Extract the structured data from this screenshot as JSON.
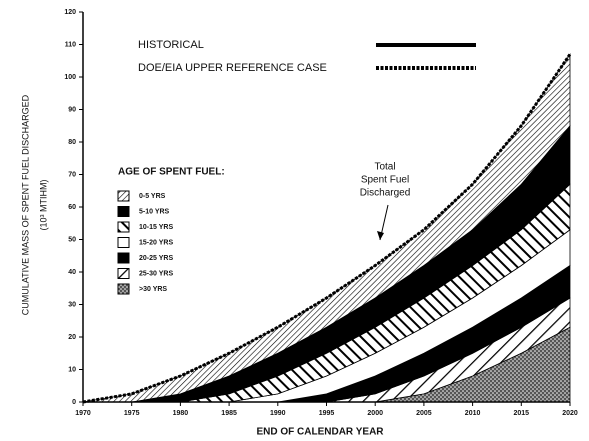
{
  "chart_data": {
    "type": "area",
    "stacked": true,
    "xlabel": "END OF CALENDAR YEAR",
    "ylabel": [
      "CUMULATIVE MASS OF SPENT FUEL DISCHARGED",
      "(10³ MTIHM)"
    ],
    "legend_lines": [
      "HISTORICAL",
      "DOE/EIA UPPER REFERENCE CASE"
    ],
    "legend_title": "AGE OF SPENT FUEL:",
    "annotation": [
      "Total",
      "Spent Fuel",
      "Discharged"
    ],
    "x": [
      1970,
      1975,
      1980,
      1985,
      1990,
      1995,
      2000,
      2005,
      2010,
      2015,
      2020
    ],
    "xlim": [
      1970,
      2020
    ],
    "xticks": [
      1970,
      1975,
      1980,
      1985,
      1990,
      1995,
      2000,
      2005,
      2010,
      2015,
      2020
    ],
    "ylim": [
      0,
      120
    ],
    "yticks": [
      0,
      10,
      20,
      30,
      40,
      50,
      60,
      70,
      80,
      90,
      100,
      110,
      120
    ],
    "series": [
      {
        "name": "0-5 YRS",
        "color": "#000000",
        "values": [
          0,
          2.5,
          5.5,
          7,
          8,
          9,
          10,
          11,
          14,
          18,
          22
        ]
      },
      {
        "name": "5-10 YRS",
        "color": "#000000",
        "values": [
          0,
          0,
          2.5,
          5.5,
          7,
          8,
          9,
          10,
          11,
          14,
          18
        ]
      },
      {
        "name": "10-15 YRS",
        "color": "#000000",
        "values": [
          0,
          0,
          0,
          2.5,
          5.5,
          7,
          8,
          9,
          10,
          11,
          14
        ]
      },
      {
        "name": "15-20 YRS",
        "color": "#000000",
        "values": [
          0,
          0,
          0,
          0,
          2.5,
          5.5,
          7,
          8,
          9,
          10,
          11
        ]
      },
      {
        "name": "20-25 YRS",
        "color": "#000000",
        "values": [
          0,
          0,
          0,
          0,
          0,
          2.5,
          5.5,
          7,
          8,
          9,
          10
        ]
      },
      {
        "name": "25-30 YRS",
        "color": "#000000",
        "values": [
          0,
          0,
          0,
          0,
          0,
          0,
          2.5,
          5.5,
          7,
          8,
          9
        ]
      },
      {
        "name": ">30 YRS",
        "color": "#000000",
        "values": [
          0,
          0,
          0,
          0,
          0,
          0,
          0,
          2.5,
          8,
          15,
          23
        ]
      }
    ]
  }
}
